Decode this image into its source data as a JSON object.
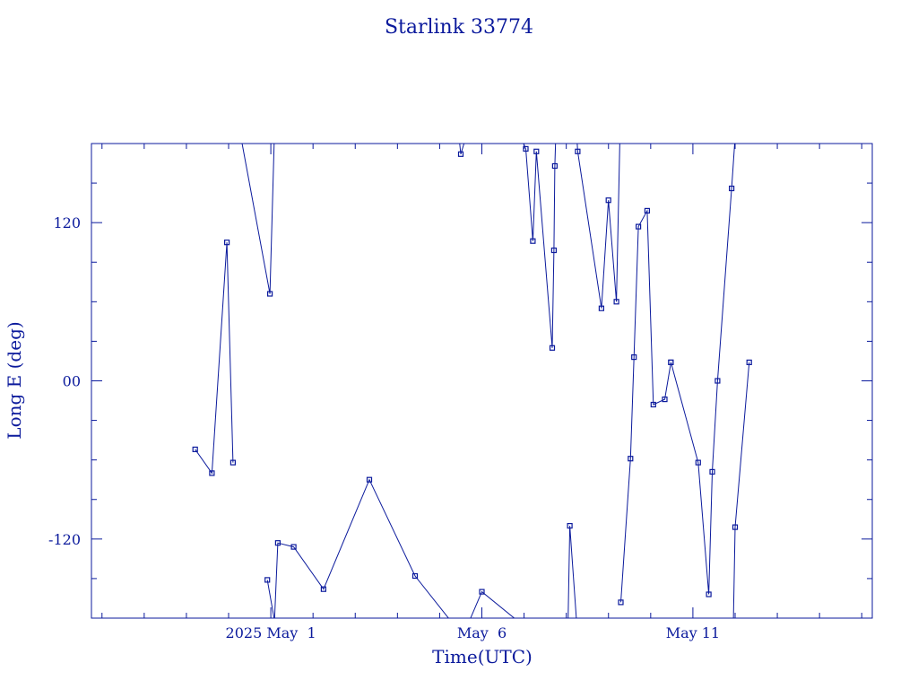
{
  "chart_data": {
    "type": "line",
    "title": "Starlink 33774",
    "xlabel": "Time(UTC)",
    "ylabel": "Long E (deg)",
    "xlim": [
      "2025-04-26T18:00",
      "2025-05-15T06:00"
    ],
    "ylim": [
      -180,
      180
    ],
    "x_ticks": [
      {
        "label": "2025 May  1",
        "value": "2025-05-01T00:00"
      },
      {
        "label": "May  6",
        "value": "2025-05-06T00:00"
      },
      {
        "label": "May 11",
        "value": "2025-05-11T00:00"
      }
    ],
    "y_ticks": [
      {
        "label": "120",
        "value": 120
      },
      {
        "label": "00",
        "value": 0
      },
      {
        "label": "-120",
        "value": -120
      }
    ],
    "grid": false,
    "color": "#0b1a9c",
    "series": [
      {
        "x": [
          "2025-04-29T05:00",
          "2025-04-29T14:30",
          "2025-04-29T23:00",
          "2025-04-30T02:30"
        ],
        "values": [
          -52,
          -70,
          105,
          -62
        ]
      },
      {
        "x": [
          "2025-04-30T22:00",
          "2025-05-01T02:30"
        ],
        "values": [
          -151,
          -185
        ]
      },
      {
        "x": [
          "2025-04-30T07:00",
          "2025-04-30T23:30",
          "2025-05-01T02:00"
        ],
        "values": [
          185,
          66,
          185
        ]
      },
      {
        "x": [
          "2025-05-01T02:00",
          "2025-05-01T04:00",
          "2025-05-01T13:00",
          "2025-05-02T06:00",
          "2025-05-03T08:00",
          "2025-05-04T10:00",
          "2025-05-05T08:00"
        ],
        "values": [
          -185,
          -123,
          -126,
          -158,
          -75,
          -148,
          -185
        ]
      },
      {
        "x": [
          "2025-05-05T11:00",
          "2025-05-05T12:00",
          "2025-05-05T15:00"
        ],
        "values": [
          185,
          172,
          185
        ]
      },
      {
        "x": [
          "2025-05-05T16:00",
          "2025-05-06T00:00",
          "2025-05-06T23:00"
        ],
        "values": [
          -185,
          -160,
          -185
        ]
      },
      {
        "x": [
          "2025-05-06T22:00",
          "2025-05-07T01:00",
          "2025-05-07T05:00",
          "2025-05-07T07:00",
          "2025-05-07T16:00",
          "2025-05-07T17:00",
          "2025-05-07T17:30",
          "2025-05-07T18:00"
        ],
        "values": [
          185,
          176,
          106,
          174,
          25,
          99,
          163,
          185
        ]
      },
      {
        "x": [
          "2025-05-08T01:00",
          "2025-05-08T02:00",
          "2025-05-08T06:00"
        ],
        "values": [
          -185,
          -110,
          -185
        ]
      },
      {
        "x": [
          "2025-05-08T06:00",
          "2025-05-08T06:30",
          "2025-05-08T20:00",
          "2025-05-09T00:00",
          "2025-05-09T04:30",
          "2025-05-09T06:30"
        ],
        "values": [
          185,
          174,
          55,
          137,
          60,
          185
        ]
      },
      {
        "x": [
          "2025-05-09T07:00",
          "2025-05-09T12:30",
          "2025-05-09T14:30",
          "2025-05-09T17:00",
          "2025-05-09T22:00",
          "2025-05-10T01:30",
          "2025-05-10T08:00",
          "2025-05-10T11:30"
        ],
        "values": [
          -168,
          -59,
          18,
          117,
          129,
          -18,
          -14,
          14
        ]
      },
      {
        "x": [
          "2025-05-10T11:30",
          "2025-05-11T03:00",
          "2025-05-11T09:00",
          "2025-05-11T11:00",
          "2025-05-11T14:00",
          "2025-05-11T22:00",
          "2025-05-12T00:00"
        ],
        "values": [
          14,
          -62,
          -162,
          -69,
          0,
          146,
          185
        ]
      },
      {
        "x": [
          "2025-05-11T23:00",
          "2025-05-12T00:00",
          "2025-05-12T08:00"
        ],
        "values": [
          -185,
          -111,
          14
        ]
      }
    ]
  }
}
